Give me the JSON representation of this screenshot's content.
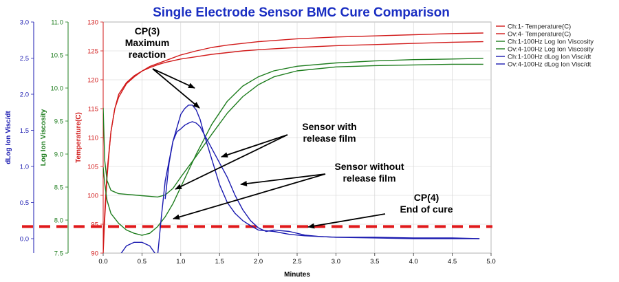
{
  "chart_data": {
    "type": "line",
    "title": "Single Electrode Sensor BMC Cure Comparison",
    "colors": {
      "title": "#1a2ec2",
      "temperature": "#d11a1a",
      "viscosity": "#1e7d1e",
      "slope": "#1a1ab0",
      "dashed_line": "#e0191b",
      "arrow": "#000000"
    },
    "grid": true,
    "x_axis": {
      "label": "Minutes",
      "range": [
        0.0,
        5.0
      ],
      "ticks": [
        "0.0",
        "0.5",
        "1.0",
        "1.5",
        "2.0",
        "2.5",
        "3.0",
        "3.5",
        "4.0",
        "4.5",
        "5.0"
      ]
    },
    "y_axes": {
      "slope": {
        "label": "dLog Ion Visc/dt",
        "range": [
          -0.2,
          3.0
        ],
        "ticks": [
          "0.0",
          "0.5",
          "1.0",
          "1.5",
          "2.0",
          "2.5",
          "3.0"
        ]
      },
      "viscosity": {
        "label": "Log Ion Viscosity",
        "range": [
          7.5,
          11.0
        ],
        "ticks": [
          "7.5",
          "8.0",
          "8.5",
          "9.0",
          "9.5",
          "10.0",
          "10.5",
          "11.0"
        ]
      },
      "temperature": {
        "label": "Temperature(C)",
        "range": [
          90,
          130
        ],
        "ticks": [
          "90",
          "95",
          "100",
          "105",
          "110",
          "115",
          "120",
          "125",
          "130"
        ]
      }
    },
    "legend": {
      "position": "top-right",
      "entries": [
        "Ch:1- Temperature(C)",
        "Ov:4- Temperature(C)",
        "Ch:1-100Hz Log Ion Viscosity",
        "Ov:4-100Hz Log Ion Viscosity",
        "Ch:1-100Hz dLog Ion Visc/dt",
        "Ov:4-100Hz dLog Ion Visc/dt"
      ]
    },
    "threshold": {
      "axis": "temperature",
      "value": 94.6,
      "style": "dashed"
    },
    "series": [
      {
        "name": "Ch:1- Temperature(C)",
        "axis": "temperature",
        "x": [
          0,
          0.05,
          0.1,
          0.15,
          0.2,
          0.3,
          0.4,
          0.5,
          0.6,
          0.7,
          0.8,
          1.0,
          1.2,
          1.4,
          1.6,
          1.8,
          2.0,
          2.5,
          3.0,
          3.5,
          4.0,
          4.5,
          4.9
        ],
        "y": [
          92,
          104,
          111,
          115,
          117.5,
          119.5,
          120.7,
          121.5,
          122.1,
          122.6,
          123,
          123.6,
          124,
          124.4,
          124.7,
          125,
          125.2,
          125.6,
          125.9,
          126.1,
          126.3,
          126.5,
          126.6
        ]
      },
      {
        "name": "Ov:4- Temperature(C)",
        "axis": "temperature",
        "x": [
          0,
          0.02,
          0.05,
          0.08,
          0.1,
          0.15,
          0.2,
          0.3,
          0.4,
          0.5,
          0.6,
          0.8,
          1.0,
          1.2,
          1.4,
          1.6,
          1.8,
          2.0,
          2.5,
          3.0,
          3.5,
          4.0,
          4.5,
          4.9
        ],
        "y": [
          90,
          96,
          103,
          108,
          111,
          115,
          117,
          119.3,
          120.5,
          121.5,
          122.3,
          123.3,
          124.3,
          125,
          125.6,
          126,
          126.3,
          126.6,
          127.1,
          127.4,
          127.6,
          127.8,
          128,
          128.1
        ]
      },
      {
        "name": "Ch:1-100Hz Log Ion Viscosity",
        "axis": "viscosity",
        "x": [
          0,
          0.02,
          0.05,
          0.1,
          0.2,
          0.3,
          0.4,
          0.5,
          0.6,
          0.7,
          0.8,
          0.9,
          1.0,
          1.2,
          1.4,
          1.6,
          1.8,
          2.0,
          2.2,
          2.5,
          3.0,
          3.5,
          4.0,
          4.5,
          4.9
        ],
        "y": [
          9.7,
          8.9,
          8.6,
          8.45,
          8.4,
          8.39,
          8.38,
          8.37,
          8.36,
          8.35,
          8.38,
          8.48,
          8.65,
          8.97,
          9.3,
          9.62,
          9.87,
          10.05,
          10.17,
          10.26,
          10.32,
          10.34,
          10.35,
          10.36,
          10.36
        ]
      },
      {
        "name": "Ov:4-100Hz Log Ion Viscosity",
        "axis": "viscosity",
        "x": [
          0,
          0.02,
          0.05,
          0.1,
          0.2,
          0.3,
          0.4,
          0.5,
          0.6,
          0.7,
          0.8,
          0.9,
          1.0,
          1.2,
          1.4,
          1.6,
          1.8,
          2.0,
          2.2,
          2.5,
          3.0,
          3.5,
          4.0,
          4.5,
          4.9
        ],
        "y": [
          8.8,
          8.55,
          8.3,
          8.1,
          7.95,
          7.85,
          7.8,
          7.77,
          7.8,
          7.9,
          8.05,
          8.25,
          8.5,
          9.0,
          9.45,
          9.8,
          10.03,
          10.17,
          10.26,
          10.33,
          10.38,
          10.41,
          10.43,
          10.44,
          10.45
        ]
      },
      {
        "name": "Ch:1-100Hz dLog Ion Visc/dt",
        "axis": "slope",
        "x": [
          0.2,
          0.3,
          0.4,
          0.5,
          0.6,
          0.7,
          0.75,
          0.8,
          0.9,
          1.0,
          1.05,
          1.1,
          1.15,
          1.2,
          1.25,
          1.3,
          1.4,
          1.5,
          1.6,
          1.7,
          1.8,
          1.9,
          2.0,
          2.2,
          2.4,
          2.6,
          2.8,
          3.0,
          3.5,
          4.0,
          4.5,
          4.85
        ],
        "y": [
          -0.25,
          -0.1,
          -0.05,
          -0.05,
          -0.1,
          -0.25,
          0.3,
          0.8,
          1.35,
          1.72,
          1.8,
          1.85,
          1.85,
          1.78,
          1.65,
          1.45,
          1.1,
          0.75,
          0.5,
          0.35,
          0.25,
          0.18,
          0.12,
          0.1,
          0.06,
          0.04,
          0.03,
          0.02,
          0.02,
          0.01,
          0.01,
          0.0
        ]
      },
      {
        "name": "Ov:4-100Hz dLog Ion Visc/dt",
        "axis": "slope",
        "x": [
          0.8,
          0.85,
          0.9,
          0.95,
          1.0,
          1.05,
          1.1,
          1.15,
          1.2,
          1.25,
          1.3,
          1.35,
          1.4,
          1.5,
          1.6,
          1.7,
          1.8,
          1.9,
          2.0,
          2.1,
          2.2,
          2.4,
          2.6,
          2.8,
          3.0,
          3.5,
          4.0,
          4.5,
          4.85
        ],
        "y": [
          0.55,
          1.05,
          1.35,
          1.48,
          1.52,
          1.57,
          1.6,
          1.62,
          1.6,
          1.55,
          1.45,
          1.35,
          1.25,
          1.05,
          0.85,
          0.6,
          0.4,
          0.25,
          0.15,
          0.1,
          0.12,
          0.1,
          0.05,
          0.03,
          0.02,
          0.01,
          0.0,
          0.0,
          0.0
        ]
      }
    ],
    "annotations": [
      {
        "lines": [
          "CP(3)",
          "Maximum",
          "reaction"
        ]
      },
      {
        "lines": [
          "Sensor with",
          "release film"
        ]
      },
      {
        "lines": [
          "Sensor without",
          "release film"
        ]
      },
      {
        "lines": [
          "CP(4)",
          "End of cure"
        ]
      }
    ]
  }
}
